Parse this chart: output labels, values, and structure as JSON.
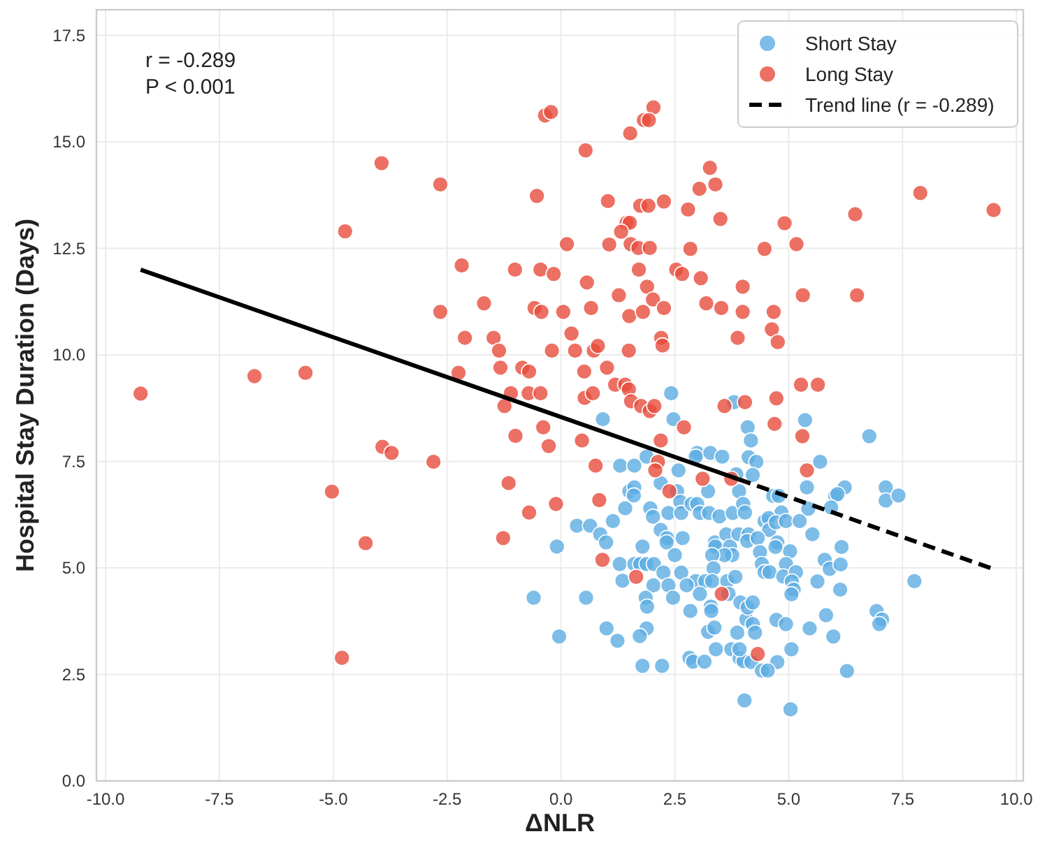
{
  "chart_data": {
    "type": "scatter",
    "xlabel": "ΔNLR",
    "ylabel": "Hospital Stay Duration (Days)",
    "annotations": [
      "r = -0.289",
      "P < 0.001"
    ],
    "xlim": [
      -10.2,
      10.15
    ],
    "ylim": [
      0,
      18.1
    ],
    "xticks": [
      {
        "value": -10,
        "label": "-10.0"
      },
      {
        "value": -7.5,
        "label": "-7.5"
      },
      {
        "value": -5,
        "label": "-5.0"
      },
      {
        "value": -2.5,
        "label": "-2.5"
      },
      {
        "value": 0,
        "label": "0.0"
      },
      {
        "value": 2.5,
        "label": "2.5"
      },
      {
        "value": 5,
        "label": "5.0"
      },
      {
        "value": 7.5,
        "label": "7.5"
      },
      {
        "value": 10,
        "label": "10.0"
      }
    ],
    "yticks": [
      {
        "value": 0,
        "label": "0.0"
      },
      {
        "value": 2.5,
        "label": "2.5"
      },
      {
        "value": 5,
        "label": "5.0"
      },
      {
        "value": 7.5,
        "label": "7.5"
      },
      {
        "value": 10,
        "label": "10.0"
      },
      {
        "value": 12.5,
        "label": "12.5"
      },
      {
        "value": 15,
        "label": "15.0"
      },
      {
        "value": 17.5,
        "label": "17.5"
      }
    ],
    "grid": true,
    "legend": "top right",
    "marker": "circle",
    "series": [
      {
        "name": "Short Stay",
        "color": "#5dade2",
        "x": [
          0.92,
          2.42,
          2.47,
          3.8,
          4.1,
          4.17,
          1.88,
          1.3,
          1.61,
          2.58,
          2.99,
          2.96,
          3.28,
          3.54,
          1.5,
          1.61,
          1.6,
          2.19,
          2.55,
          3.23,
          3.85,
          3.91,
          1.41,
          1.96,
          2.02,
          2.36,
          2.62,
          2.64,
          2.87,
          2.99,
          3.05,
          3.25,
          3.48,
          3.77,
          4.0,
          0.35,
          0.64,
          1.14,
          0.86,
          0.99,
          -0.09,
          2.19,
          2.33,
          2.32,
          2.67,
          2.5,
          1.79,
          3.38,
          3.39,
          3.63,
          3.71,
          3.76,
          3.59,
          3.32,
          3.9,
          1.29,
          1.35,
          1.61,
          1.74,
          1.88,
          2.04,
          2.25,
          2.64,
          3.35,
          2.96,
          3.17,
          3.32,
          2.76,
          3.05,
          3.65,
          3.83,
          -0.6,
          0.55,
          2.03,
          2.36,
          1.86,
          1.89,
          2.46,
          2.84,
          3.29,
          3.3,
          3.68,
          3.94,
          4.07,
          1.0,
          1.88,
          1.73,
          1.24,
          -0.04,
          3.23,
          3.37,
          3.87,
          2.82,
          2.9,
          3.15,
          3.4,
          3.74,
          3.92,
          4.01,
          1.79,
          2.22,
          4.03,
          5.36,
          6.77,
          4.12,
          4.29,
          5.69,
          4.21,
          5.4,
          6.23,
          6.02,
          6.07,
          7.13,
          7.13,
          7.41,
          4.66,
          4.78,
          4.04,
          4.84,
          5.43,
          5.93,
          4.47,
          4.56,
          4.57,
          4.72,
          4.94,
          5.24,
          5.52,
          4.12,
          4.09,
          4.32,
          4.37,
          4.75,
          4.71,
          5.03,
          6.16,
          4.41,
          4.47,
          4.58,
          4.94,
          4.88,
          5.16,
          5.07,
          5.11,
          5.06,
          5.79,
          5.9,
          6.14,
          5.63,
          6.13,
          7.76,
          4.1,
          4.21,
          4.21,
          4.26,
          4.73,
          4.94,
          5.46,
          5.82,
          5.98,
          6.93,
          7.05,
          6.99,
          3.92,
          4.18,
          5.06,
          4.75,
          4.41,
          4.54,
          6.28,
          5.04
        ],
        "values": [
          8.49,
          9.1,
          8.49,
          8.89,
          8.3,
          7.99,
          7.61,
          7.4,
          7.4,
          7.29,
          7.7,
          7.61,
          7.7,
          7.61,
          6.8,
          6.89,
          6.7,
          6.99,
          6.8,
          6.8,
          7.2,
          6.8,
          6.4,
          6.4,
          6.2,
          6.29,
          6.55,
          6.29,
          6.5,
          6.5,
          6.29,
          6.29,
          6.21,
          6.29,
          6.5,
          5.99,
          5.99,
          6.1,
          5.79,
          5.6,
          5.5,
          5.89,
          5.7,
          5.6,
          5.7,
          5.3,
          5.5,
          5.6,
          5.5,
          5.79,
          5.5,
          5.3,
          5.3,
          5.3,
          5.79,
          5.09,
          4.7,
          5.09,
          5.09,
          5.09,
          5.09,
          4.89,
          4.89,
          4.99,
          4.69,
          4.69,
          4.69,
          4.59,
          4.39,
          4.69,
          4.79,
          4.3,
          4.3,
          4.59,
          4.59,
          4.3,
          4.09,
          4.3,
          3.99,
          4.09,
          3.99,
          4.39,
          4.19,
          3.79,
          3.58,
          3.58,
          3.4,
          3.29,
          3.39,
          3.5,
          3.6,
          3.48,
          2.89,
          2.8,
          2.8,
          3.09,
          3.09,
          2.88,
          2.81,
          2.7,
          2.7,
          1.89,
          8.47,
          8.09,
          7.6,
          7.49,
          7.49,
          7.18,
          6.89,
          6.89,
          6.69,
          6.73,
          6.89,
          6.58,
          6.7,
          6.69,
          6.69,
          6.3,
          6.3,
          6.39,
          6.42,
          6.1,
          6.17,
          5.89,
          6.07,
          6.1,
          6.1,
          5.79,
          5.79,
          5.63,
          5.7,
          5.37,
          5.6,
          5.49,
          5.39,
          5.49,
          5.09,
          4.9,
          4.9,
          5.09,
          4.8,
          4.9,
          4.68,
          4.49,
          4.38,
          5.19,
          4.98,
          5.08,
          4.68,
          4.49,
          4.69,
          4.07,
          4.19,
          3.68,
          3.48,
          3.78,
          3.68,
          3.58,
          3.89,
          3.39,
          3.99,
          3.79,
          3.68,
          3.09,
          2.79,
          3.09,
          2.79,
          2.59,
          2.59,
          2.58,
          1.68
        ]
      },
      {
        "name": "Long Stay",
        "color": "#e74c3c",
        "x": [
          -9.23,
          -6.73,
          -5.61,
          -4.74,
          -3.94,
          -2.65,
          -2.18,
          -2.65,
          -2.11,
          -2.25,
          -3.92,
          -3.72,
          -2.8,
          -5.03,
          -4.29,
          -4.81,
          -0.35,
          -0.22,
          2.03,
          1.82,
          1.93,
          1.52,
          0.54,
          3.27,
          3.04,
          3.39,
          -0.53,
          1.03,
          1.74,
          1.92,
          2.26,
          2.79,
          3.5,
          1.44,
          1.51,
          1.32,
          0.13,
          1.06,
          1.53,
          1.7,
          1.95,
          2.84,
          -1.01,
          -0.45,
          -0.16,
          1.71,
          2.53,
          2.66,
          3.07,
          3.99,
          0.57,
          1.89,
          2.02,
          1.27,
          -1.69,
          -0.58,
          -0.43,
          0.05,
          0.66,
          1.5,
          1.8,
          2.26,
          3.19,
          3.52,
          3.99,
          -1.48,
          0.23,
          2.2,
          2.23,
          3.88,
          -1.36,
          -0.2,
          0.31,
          0.72,
          0.81,
          1.49,
          -1.33,
          -0.85,
          -0.7,
          0.51,
          1.01,
          1.19,
          1.41,
          1.49,
          1.54,
          -1.1,
          -0.71,
          -0.45,
          -1.24,
          0.52,
          0.7,
          1.76,
          1.95,
          2.05,
          3.59,
          4.04,
          -0.39,
          2.7,
          -1.0,
          0.46,
          2.19,
          -0.27,
          0.76,
          2.13,
          2.07,
          -1.15,
          -0.11,
          -0.7,
          0.84,
          -1.27,
          0.91,
          1.65,
          2.38,
          3.11,
          3.74,
          3.53,
          4.69,
          5.3,
          5.4,
          4.32,
          7.89,
          9.5,
          6.46,
          4.91,
          5.17,
          4.47,
          5.31,
          6.5,
          4.67,
          4.63,
          4.76,
          5.27,
          5.64,
          4.73
        ],
        "values": [
          9.09,
          9.5,
          9.58,
          12.9,
          14.5,
          14.0,
          12.1,
          11.01,
          10.4,
          9.58,
          7.84,
          7.7,
          7.49,
          6.79,
          5.58,
          2.89,
          15.62,
          15.7,
          15.81,
          15.51,
          15.51,
          15.2,
          14.8,
          14.39,
          13.9,
          14.0,
          13.73,
          13.61,
          13.5,
          13.5,
          13.6,
          13.41,
          13.19,
          13.1,
          13.1,
          12.89,
          12.6,
          12.59,
          12.6,
          12.51,
          12.51,
          12.49,
          12.0,
          12.0,
          11.9,
          12.0,
          12.0,
          11.9,
          11.8,
          11.6,
          11.7,
          11.6,
          11.3,
          11.4,
          11.21,
          11.1,
          11.01,
          11.01,
          11.1,
          10.91,
          11.01,
          11.1,
          11.21,
          11.1,
          11.01,
          10.4,
          10.5,
          10.4,
          10.22,
          10.4,
          10.1,
          10.1,
          10.1,
          10.1,
          10.21,
          10.1,
          9.7,
          9.7,
          9.61,
          9.61,
          9.7,
          9.3,
          9.3,
          9.19,
          8.91,
          9.1,
          9.1,
          9.1,
          8.8,
          8.99,
          9.1,
          8.8,
          8.68,
          8.8,
          8.8,
          8.89,
          8.3,
          8.3,
          8.1,
          7.99,
          7.99,
          7.86,
          7.4,
          7.49,
          7.29,
          6.99,
          6.5,
          6.3,
          6.59,
          5.7,
          5.19,
          4.79,
          6.8,
          7.09,
          7.09,
          4.39,
          8.38,
          8.09,
          7.29,
          2.98,
          13.8,
          13.4,
          13.3,
          13.09,
          12.6,
          12.49,
          11.4,
          11.4,
          11.01,
          10.6,
          10.3,
          9.3,
          9.3,
          8.98
        ]
      },
      {
        "type": "line",
        "color": "#000000",
        "x": [
          -9.23,
          3.9
        ],
        "values": [
          12.0,
          7.08
        ],
        "line_style": "solid",
        "marker": "none"
      },
      {
        "type": "line",
        "name": "Trend line (r = -0.289)",
        "color": "#000000",
        "x": [
          3.9,
          9.45
        ],
        "values": [
          7.08,
          4.99
        ],
        "line_style": "dashed",
        "marker": "none"
      }
    ]
  }
}
